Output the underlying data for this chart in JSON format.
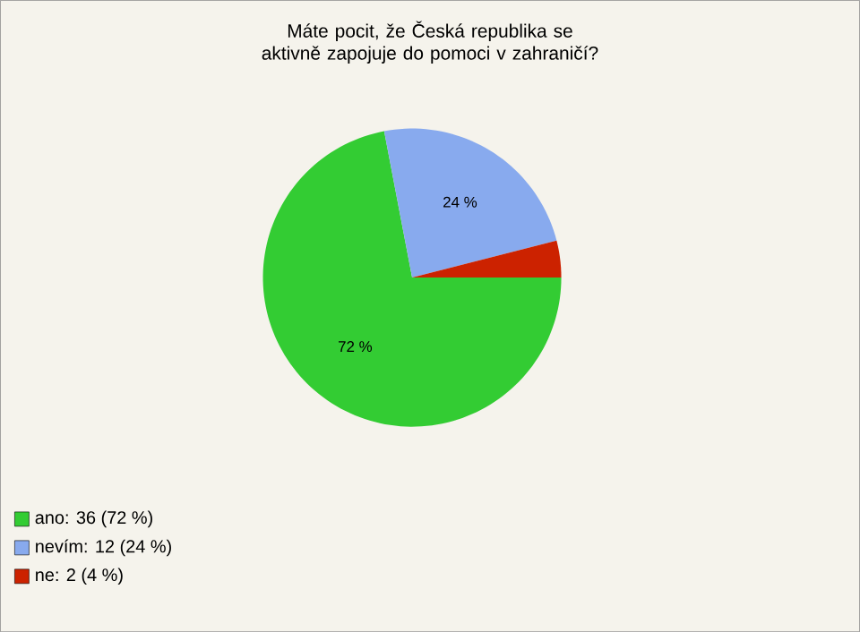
{
  "chart_data": {
    "type": "pie",
    "title": "Máte pocit, že Česká republika se aktivně zapojuje do pomoci v zahraničí?",
    "categories": [
      "ano: 36 (72 %)",
      "nevím: 12 (24 %)",
      "ne: 2 (4 %)"
    ],
    "values": [
      72,
      24,
      4
    ],
    "value_labels": [
      "72 %",
      "24 %",
      null
    ],
    "colors": [
      "#33cc33",
      "#88aaee",
      "#cc2200"
    ],
    "legend": "bottom left"
  }
}
